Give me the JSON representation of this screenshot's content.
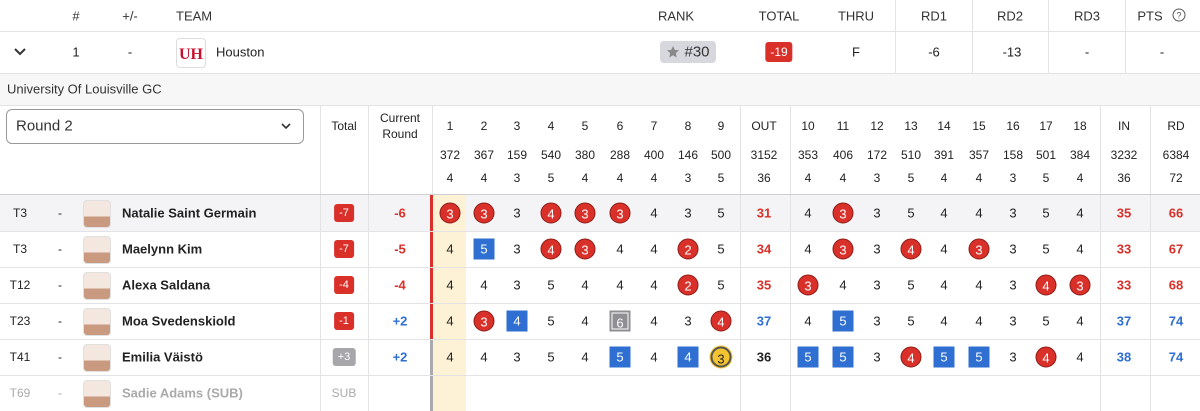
{
  "header": {
    "columns": [
      "#",
      "+/-",
      "TEAM",
      "RANK",
      "TOTAL",
      "THRU",
      "RD1",
      "RD2",
      "RD3",
      "PTS"
    ]
  },
  "team": {
    "position": "1",
    "change": "-",
    "name": "Houston",
    "rank": "#30",
    "total": "-19",
    "thru": "F",
    "rd1": "-6",
    "rd2": "-13",
    "rd3": "-",
    "pts": "-"
  },
  "course": "University Of Louisville GC",
  "round_select": "Round 2",
  "scorecard": {
    "total_header": "Total",
    "current_header": "Current Round",
    "holes": [
      1,
      2,
      3,
      4,
      5,
      6,
      7,
      8,
      9,
      "OUT",
      10,
      11,
      12,
      13,
      14,
      15,
      16,
      17,
      18,
      "IN",
      "RD"
    ],
    "yardage": [
      372,
      367,
      159,
      540,
      380,
      288,
      400,
      146,
      500,
      3152,
      353,
      406,
      172,
      510,
      391,
      357,
      158,
      501,
      384,
      3232,
      6384
    ],
    "par": [
      4,
      4,
      3,
      5,
      4,
      4,
      4,
      3,
      5,
      36,
      4,
      4,
      3,
      5,
      4,
      4,
      3,
      5,
      4,
      36,
      72
    ]
  },
  "players": [
    {
      "position": "T3",
      "change": "-",
      "name": "Natalie Saint Germain",
      "total": "-7",
      "current": "-6",
      "scores": [
        3,
        3,
        3,
        4,
        3,
        3,
        4,
        3,
        5,
        31,
        4,
        3,
        3,
        5,
        4,
        4,
        3,
        5,
        4,
        35,
        66
      ]
    },
    {
      "position": "T3",
      "change": "-",
      "name": "Maelynn Kim",
      "total": "-7",
      "current": "-5",
      "scores": [
        4,
        5,
        3,
        4,
        3,
        4,
        4,
        2,
        5,
        34,
        4,
        3,
        3,
        4,
        4,
        3,
        3,
        5,
        4,
        33,
        67
      ]
    },
    {
      "position": "T12",
      "change": "-",
      "name": "Alexa Saldana",
      "total": "-4",
      "current": "-4",
      "scores": [
        4,
        4,
        3,
        5,
        4,
        4,
        4,
        2,
        5,
        35,
        3,
        4,
        3,
        5,
        4,
        4,
        3,
        4,
        3,
        33,
        68
      ]
    },
    {
      "position": "T23",
      "change": "-",
      "name": "Moa Svedenskiold",
      "total": "-1",
      "current": "+2",
      "scores": [
        4,
        3,
        4,
        5,
        4,
        6,
        4,
        3,
        4,
        37,
        4,
        5,
        3,
        5,
        4,
        4,
        3,
        5,
        4,
        37,
        74
      ]
    },
    {
      "position": "T41",
      "change": "-",
      "name": "Emilia Väistö",
      "total": "+3",
      "current": "+2",
      "scores": [
        4,
        4,
        3,
        5,
        4,
        5,
        4,
        4,
        3,
        36,
        5,
        5,
        3,
        4,
        5,
        5,
        3,
        4,
        4,
        38,
        74
      ]
    },
    {
      "position": "T69",
      "change": "-",
      "name": "Sadie Adams (SUB)",
      "total": "SUB",
      "current": null,
      "scores": []
    }
  ]
}
